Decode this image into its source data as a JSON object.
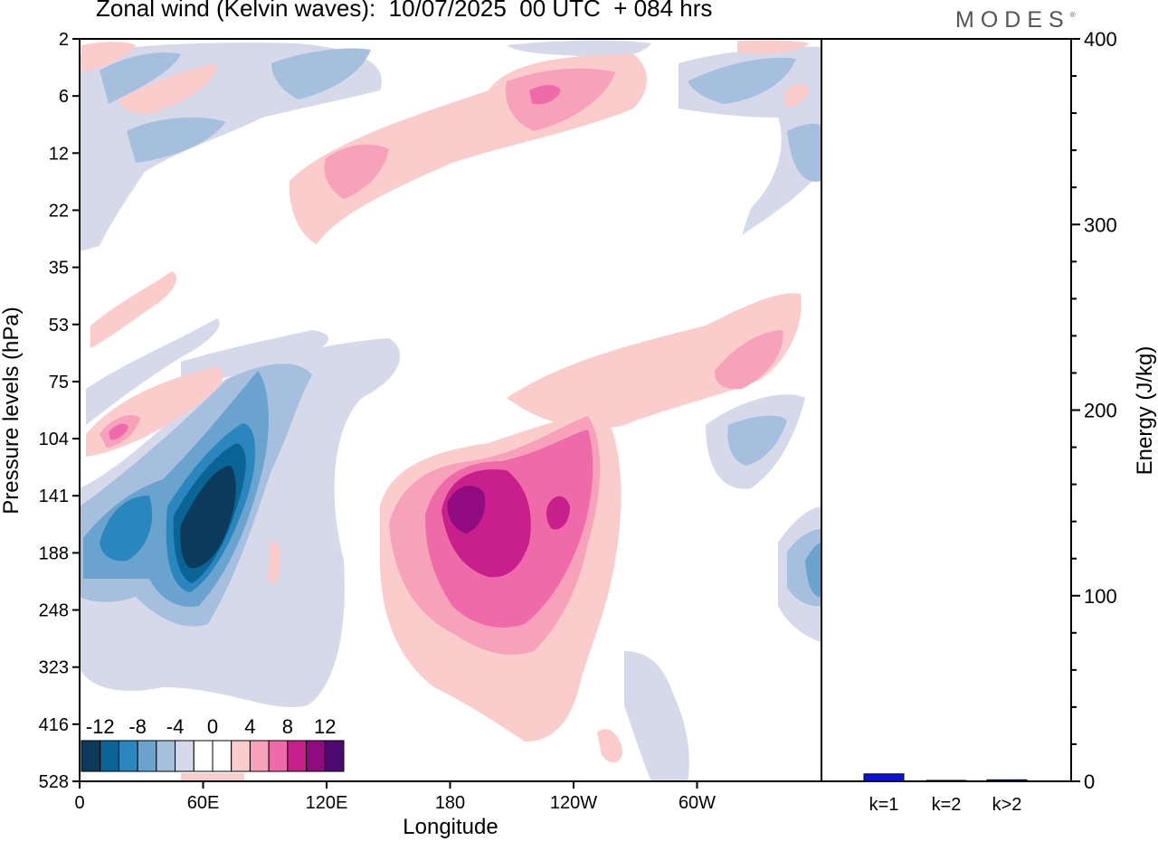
{
  "title": "Zonal wind (Kelvin waves):  10/07/2025  00 UTC  + 084 hrs",
  "logo": "MODES",
  "logo_mark": "®",
  "colors": {
    "levels": [
      "#0b3a5a",
      "#0a6496",
      "#2a86bd",
      "#6aa3cd",
      "#a7bfdf",
      "#d5d9ea",
      "#ffffff",
      "#ffffff",
      "#fbcccc",
      "#f8a1bb",
      "#ee6aa8",
      "#c81f8c",
      "#8f0b7f",
      "#4e0a6e"
    ]
  },
  "chart_data": [
    {
      "type": "heatmap",
      "title": "Zonal wind (Kelvin waves):  10/07/2025  00 UTC  + 084 hrs",
      "xlabel": "Longitude",
      "ylabel": "Pressure levels (hPa)",
      "x_ticks": [
        "0",
        "60E",
        "120E",
        "180",
        "120W",
        "60W"
      ],
      "y_ticks": [
        "2",
        "6",
        "12",
        "22",
        "35",
        "53",
        "75",
        "104",
        "141",
        "188",
        "248",
        "323",
        "416",
        "528"
      ],
      "colorbar_labels": [
        "-12",
        "-8",
        "-4",
        "0",
        "4",
        "8",
        "12"
      ],
      "features": [
        {
          "lon": 65,
          "p": 141,
          "value": -14
        },
        {
          "lon": 30,
          "p": 160,
          "value": -7
        },
        {
          "lon": 190,
          "p": 141,
          "value": 13
        },
        {
          "lon": 235,
          "p": 141,
          "value": 9
        },
        {
          "lon": 230,
          "p": 6,
          "value": 7
        },
        {
          "lon": 140,
          "p": 12,
          "value": 5
        },
        {
          "lon": 20,
          "p": 104,
          "value": 6
        },
        {
          "lon": 330,
          "p": 120,
          "value": -5
        },
        {
          "lon": 355,
          "p": 188,
          "value": -7
        },
        {
          "lon": 300,
          "p": 75,
          "value": 5
        }
      ]
    },
    {
      "type": "bar",
      "categories": [
        "k=1",
        "k=2",
        "k>2"
      ],
      "values": [
        4,
        0.5,
        0.8
      ],
      "ylabel": "Energy (J/kg)",
      "ylim": [
        0,
        400
      ],
      "y_ticks": [
        "0",
        "100",
        "200",
        "300",
        "400"
      ],
      "bar_color": "#0a12d8"
    }
  ]
}
